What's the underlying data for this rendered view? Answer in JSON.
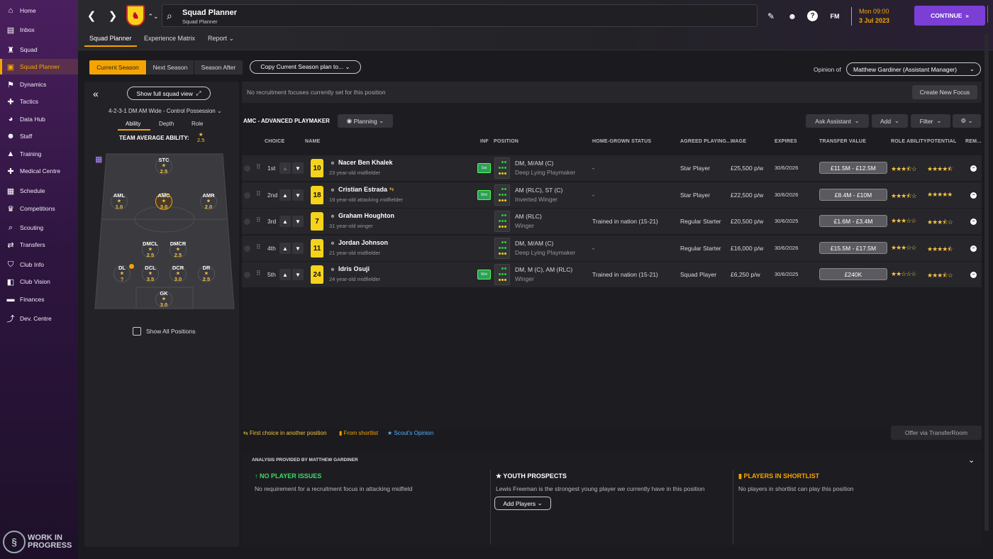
{
  "sidebar": {
    "items": [
      {
        "label": "Home",
        "icon": "home-icon",
        "glyph": "⌂"
      },
      {
        "label": "Inbox",
        "icon": "inbox-icon",
        "glyph": "▤"
      },
      {
        "label": "Squad",
        "icon": "shirt-icon",
        "glyph": "♜"
      },
      {
        "label": "Squad Planner",
        "icon": "clipboard-icon",
        "glyph": "▣"
      },
      {
        "label": "Dynamics",
        "icon": "dynamics-icon",
        "glyph": "⚑"
      },
      {
        "label": "Tactics",
        "icon": "tactics-icon",
        "glyph": "✚"
      },
      {
        "label": "Data Hub",
        "icon": "data-hub-icon",
        "glyph": "◕"
      },
      {
        "label": "Staff",
        "icon": "staff-icon",
        "glyph": "☻"
      },
      {
        "label": "Training",
        "icon": "training-icon",
        "glyph": "▲"
      },
      {
        "label": "Medical Centre",
        "icon": "medical-icon",
        "glyph": "✚"
      },
      {
        "label": "Schedule",
        "icon": "calendar-icon",
        "glyph": "▦"
      },
      {
        "label": "Competitions",
        "icon": "trophy-icon",
        "glyph": "♛"
      },
      {
        "label": "Scouting",
        "icon": "scouting-icon",
        "glyph": "⌕"
      },
      {
        "label": "Transfers",
        "icon": "transfers-icon",
        "glyph": "⇄"
      },
      {
        "label": "Club Info",
        "icon": "shield-icon",
        "glyph": "⛉"
      },
      {
        "label": "Club Vision",
        "icon": "vision-icon",
        "glyph": "◧"
      },
      {
        "label": "Finances",
        "icon": "finances-icon",
        "glyph": "▬"
      },
      {
        "label": "Dev. Centre",
        "icon": "dev-centre-icon",
        "glyph": "⤴"
      }
    ],
    "active_index": 3,
    "badge_line1": "WORK IN",
    "badge_line2": "PROGRESS"
  },
  "header": {
    "title": "Squad Planner",
    "subtitle": "Squad Planner",
    "date_line1": "Mon 09:00",
    "date_line2": "3 Jul 2023",
    "continue_label": "CONTINUE",
    "fm_label": "FM",
    "back_glyph": "❮",
    "forward_glyph": "❯",
    "accent_color": "#f5a300",
    "continue_color": "#7b3fd6"
  },
  "subtabs": [
    "Squad Planner",
    "Experience Matrix",
    "Report ⌄"
  ],
  "season_tabs": [
    "Current Season",
    "Next Season",
    "Season After"
  ],
  "copy_plan_label": "Copy Current Season plan to... ⌄",
  "opinion": {
    "label": "Opinion of",
    "value": "Matthew Gardiner (Assistant Manager)"
  },
  "left_panel": {
    "show_full_label": "Show full squad view",
    "formation": "4-2-3-1 DM AM Wide - Control Possession",
    "tabs": [
      "Ability",
      "Depth",
      "Role"
    ],
    "team_avg_label": "TEAM AVERAGE ABILITY:",
    "team_avg_value": "2.5",
    "show_all_label": "Show All Positions",
    "positions": [
      {
        "name": "STC",
        "value": "2.5"
      },
      {
        "name": "AML",
        "value": "1.0"
      },
      {
        "name": "AMC",
        "value": "3.0"
      },
      {
        "name": "AMR",
        "value": "2.0"
      },
      {
        "name": "DMCL",
        "value": "2.5"
      },
      {
        "name": "DMCR",
        "value": "2.5"
      },
      {
        "name": "DL",
        "value": "?"
      },
      {
        "name": "DCL",
        "value": "3.5"
      },
      {
        "name": "DCR",
        "value": "3.0"
      },
      {
        "name": "DR",
        "value": "2.5"
      },
      {
        "name": "GK",
        "value": "3.0"
      }
    ]
  },
  "focus_bar": {
    "text": "No recruitment focuses currently set for this position",
    "button": "Create New Focus"
  },
  "section": {
    "title": "AMC - ADVANCED PLAYMAKER",
    "planning_label": "Planning",
    "ask_assistant": "Ask Assistant",
    "add": "Add",
    "filter": "Filter"
  },
  "table": {
    "headers": [
      "CHOICE",
      "NAME",
      "INF",
      "POSITION",
      "HOME-GROWN STATUS",
      "AGREED PLAYING...",
      "WAGE",
      "EXPIRES",
      "TRANSFER VALUE",
      "ROLE ABILITY",
      "POTENTIAL",
      "REM..."
    ],
    "rows": [
      {
        "choice": "1st",
        "number": "10",
        "name": "Nacer Ben Khalek",
        "desc": "23 year-old midfielder",
        "inf": "Sat",
        "position": "DM, M/AM (C)",
        "role": "Deep Lying Playmaker",
        "homegrown": "-",
        "playing": "Star Player",
        "wage": "£25,500 p/w",
        "expires": "30/6/2026",
        "value": "£11.5M - £12.5M",
        "ability": 3.5,
        "potential": 4.5
      },
      {
        "choice": "2nd",
        "number": "18",
        "name": "Cristian Estrada",
        "desc": "19 year-old attacking midfielder",
        "inf": "Wnt",
        "position": "AM (RLC), ST (C)",
        "role": "Inverted Winger",
        "homegrown": "-",
        "playing": "Star Player",
        "wage": "£22,500 p/w",
        "expires": "30/6/2026",
        "value": "£8.4M - £10M",
        "ability": 3.5,
        "potential": 5
      },
      {
        "choice": "3rd",
        "number": "7",
        "name": "Graham Houghton",
        "desc": "31 year-old winger",
        "inf": "",
        "position": "AM (RLC)",
        "role": "Winger",
        "homegrown": "Trained in nation (15-21)",
        "playing": "Regular Starter",
        "wage": "£20,500 p/w",
        "expires": "30/6/2025",
        "value": "£1.6M - £3.4M",
        "ability": 3,
        "potential": 3.5
      },
      {
        "choice": "4th",
        "number": "11",
        "name": "Jordan Johnson",
        "desc": "21 year-old midfielder",
        "inf": "",
        "position": "DM, M/AM (C)",
        "role": "Deep Lying Playmaker",
        "homegrown": "-",
        "playing": "Regular Starter",
        "wage": "£16,000 p/w",
        "expires": "30/6/2026",
        "value": "£15.5M - £17.5M",
        "ability": 3,
        "potential": 4.5
      },
      {
        "choice": "5th",
        "number": "24",
        "name": "Idris Osuji",
        "desc": "24 year-old midfielder",
        "inf": "Wnt",
        "position": "DM, M (C), AM (RLC)",
        "role": "Winger",
        "homegrown": "Trained in nation (15-21)",
        "playing": "Squad Player",
        "wage": "£6,250 p/w",
        "expires": "30/6/2025",
        "value": "£240K",
        "ability": 2,
        "potential": 3.5
      }
    ]
  },
  "legend": {
    "first_choice": "First choice in another position",
    "shortlist": "From shortlist",
    "scout": "Scout's Opinion",
    "offer": "Offer via TransferRoom"
  },
  "analysis": {
    "title": "ANALYSIS PROVIDED BY MATTHEW GARDINER",
    "col1_title": "NO PLAYER ISSUES",
    "col1_text": "No requirement for a recruitment focus in attacking midfield",
    "col2_title": "YOUTH PROSPECTS",
    "col2_text": "Lewis Freeman is the strongest young player we currently have in this position",
    "col2_button": "Add Players",
    "col3_title": "PLAYERS IN SHORTLIST",
    "col3_text": "No players in shortlist can play this position"
  }
}
